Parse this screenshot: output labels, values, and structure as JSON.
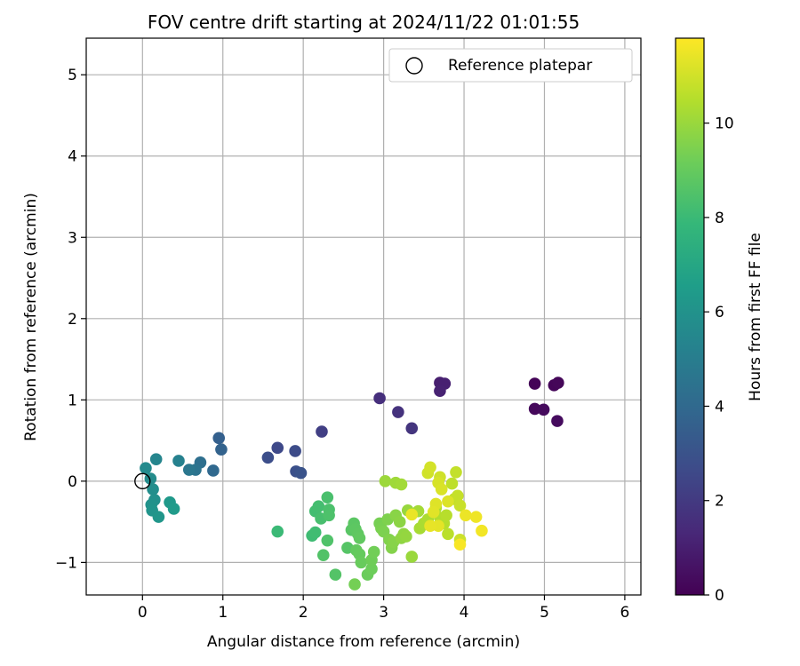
{
  "chart_data": {
    "type": "scatter",
    "title": "FOV centre drift starting at 2024/11/22 01:01:55",
    "xlabel": "Angular distance from reference (arcmin)",
    "ylabel": "Rotation from reference (arcmin)",
    "xlim": [
      -0.7,
      6.2
    ],
    "ylim": [
      -1.4,
      5.45
    ],
    "xticks": [
      0,
      1,
      2,
      3,
      4,
      5,
      6
    ],
    "yticks": [
      -1,
      0,
      1,
      2,
      3,
      4,
      5
    ],
    "xtick_labels": [
      "0",
      "1",
      "2",
      "3",
      "4",
      "5",
      "6"
    ],
    "ytick_labels": [
      "−1",
      "0",
      "1",
      "2",
      "3",
      "4",
      "5"
    ],
    "grid": true,
    "legend": {
      "position": "top-right",
      "label": "Reference platepar",
      "marker": "open-circle"
    },
    "reference_point": {
      "x": 0,
      "y": 0
    },
    "colorbar": {
      "label": "Hours from first FF file",
      "colormap": "viridis",
      "range": [
        0,
        11.8
      ],
      "ticks": [
        0,
        2,
        4,
        6,
        8,
        10
      ],
      "tick_labels": [
        "0",
        "2",
        "4",
        "6",
        "8",
        "10"
      ]
    },
    "series": [
      {
        "points": [
          {
            "x": 4.88,
            "y": 1.2,
            "c": 0.1
          },
          {
            "x": 5.12,
            "y": 1.18,
            "c": 0.15
          },
          {
            "x": 5.17,
            "y": 1.21,
            "c": 0.2
          },
          {
            "x": 4.88,
            "y": 0.89,
            "c": 0.25
          },
          {
            "x": 4.99,
            "y": 0.88,
            "c": 0.3
          },
          {
            "x": 5.16,
            "y": 0.74,
            "c": 0.35
          },
          {
            "x": 3.7,
            "y": 1.21,
            "c": 1.0
          },
          {
            "x": 3.76,
            "y": 1.2,
            "c": 1.05
          },
          {
            "x": 3.7,
            "y": 1.11,
            "c": 1.1
          },
          {
            "x": 2.95,
            "y": 1.02,
            "c": 1.6
          },
          {
            "x": 3.18,
            "y": 0.85,
            "c": 1.7
          },
          {
            "x": 3.35,
            "y": 0.65,
            "c": 1.8
          },
          {
            "x": 2.23,
            "y": 0.61,
            "c": 2.2
          },
          {
            "x": 1.68,
            "y": 0.41,
            "c": 2.6
          },
          {
            "x": 1.9,
            "y": 0.37,
            "c": 2.7
          },
          {
            "x": 1.56,
            "y": 0.29,
            "c": 2.8
          },
          {
            "x": 1.91,
            "y": 0.12,
            "c": 2.9
          },
          {
            "x": 1.97,
            "y": 0.1,
            "c": 3.0
          },
          {
            "x": 0.95,
            "y": 0.53,
            "c": 3.6
          },
          {
            "x": 0.98,
            "y": 0.39,
            "c": 3.7
          },
          {
            "x": 0.88,
            "y": 0.13,
            "c": 4.0
          },
          {
            "x": 0.72,
            "y": 0.23,
            "c": 4.3
          },
          {
            "x": 0.66,
            "y": 0.14,
            "c": 4.5
          },
          {
            "x": 0.58,
            "y": 0.14,
            "c": 4.7
          },
          {
            "x": 0.45,
            "y": 0.25,
            "c": 5.2
          },
          {
            "x": 0.17,
            "y": 0.27,
            "c": 5.4
          },
          {
            "x": 0.04,
            "y": 0.16,
            "c": 5.6
          },
          {
            "x": 0.1,
            "y": 0.03,
            "c": 5.7
          },
          {
            "x": 0.13,
            "y": -0.1,
            "c": 5.8
          },
          {
            "x": 0.15,
            "y": -0.23,
            "c": 5.9
          },
          {
            "x": 0.11,
            "y": -0.29,
            "c": 6.0
          },
          {
            "x": 0.12,
            "y": -0.36,
            "c": 6.1
          },
          {
            "x": 0.2,
            "y": -0.44,
            "c": 6.2
          },
          {
            "x": 0.34,
            "y": -0.26,
            "c": 6.3
          },
          {
            "x": 0.39,
            "y": -0.34,
            "c": 6.4
          },
          {
            "x": 1.68,
            "y": -0.62,
            "c": 8.0
          },
          {
            "x": 2.11,
            "y": -0.67,
            "c": 8.1
          },
          {
            "x": 2.15,
            "y": -0.63,
            "c": 8.15
          },
          {
            "x": 2.15,
            "y": -0.37,
            "c": 8.2
          },
          {
            "x": 2.19,
            "y": -0.31,
            "c": 8.25
          },
          {
            "x": 2.22,
            "y": -0.46,
            "c": 8.3
          },
          {
            "x": 2.3,
            "y": -0.2,
            "c": 8.35
          },
          {
            "x": 2.32,
            "y": -0.35,
            "c": 8.4
          },
          {
            "x": 2.32,
            "y": -0.42,
            "c": 8.45
          },
          {
            "x": 2.3,
            "y": -0.73,
            "c": 8.5
          },
          {
            "x": 2.25,
            "y": -0.91,
            "c": 8.55
          },
          {
            "x": 2.4,
            "y": -1.15,
            "c": 8.6
          },
          {
            "x": 2.55,
            "y": -0.82,
            "c": 8.65
          },
          {
            "x": 2.6,
            "y": -0.6,
            "c": 8.7
          },
          {
            "x": 2.63,
            "y": -0.52,
            "c": 8.75
          },
          {
            "x": 2.65,
            "y": -0.59,
            "c": 8.8
          },
          {
            "x": 2.68,
            "y": -0.65,
            "c": 8.85
          },
          {
            "x": 2.7,
            "y": -0.7,
            "c": 8.9
          },
          {
            "x": 2.66,
            "y": -0.85,
            "c": 8.95
          },
          {
            "x": 2.7,
            "y": -0.9,
            "c": 9.0
          },
          {
            "x": 2.72,
            "y": -1.0,
            "c": 9.05
          },
          {
            "x": 2.8,
            "y": -1.15,
            "c": 9.1
          },
          {
            "x": 2.85,
            "y": -1.08,
            "c": 9.15
          },
          {
            "x": 2.85,
            "y": -0.97,
            "c": 9.2
          },
          {
            "x": 2.88,
            "y": -0.87,
            "c": 9.25
          },
          {
            "x": 2.64,
            "y": -1.27,
            "c": 9.3
          },
          {
            "x": 2.95,
            "y": -0.52,
            "c": 9.35
          },
          {
            "x": 2.97,
            "y": -0.58,
            "c": 9.4
          },
          {
            "x": 3.0,
            "y": -0.62,
            "c": 9.45
          },
          {
            "x": 3.05,
            "y": -0.47,
            "c": 9.5
          },
          {
            "x": 3.07,
            "y": -0.72,
            "c": 9.55
          },
          {
            "x": 3.1,
            "y": -0.82,
            "c": 9.6
          },
          {
            "x": 3.12,
            "y": -0.75,
            "c": 9.65
          },
          {
            "x": 3.15,
            "y": -0.42,
            "c": 9.7
          },
          {
            "x": 3.2,
            "y": -0.5,
            "c": 9.75
          },
          {
            "x": 3.22,
            "y": -0.7,
            "c": 9.8
          },
          {
            "x": 3.25,
            "y": -0.65,
            "c": 9.85
          },
          {
            "x": 3.28,
            "y": -0.68,
            "c": 9.9
          },
          {
            "x": 3.3,
            "y": -0.36,
            "c": 9.95
          },
          {
            "x": 3.35,
            "y": -0.93,
            "c": 10.0
          },
          {
            "x": 3.02,
            "y": 0.0,
            "c": 10.05
          },
          {
            "x": 3.15,
            "y": -0.02,
            "c": 10.1
          },
          {
            "x": 3.22,
            "y": -0.04,
            "c": 10.15
          },
          {
            "x": 3.43,
            "y": -0.37,
            "c": 10.2
          },
          {
            "x": 3.45,
            "y": -0.58,
            "c": 10.25
          },
          {
            "x": 3.5,
            "y": -0.52,
            "c": 10.3
          },
          {
            "x": 3.55,
            "y": -0.47,
            "c": 10.35
          },
          {
            "x": 3.65,
            "y": -0.33,
            "c": 10.4
          },
          {
            "x": 3.7,
            "y": -0.45,
            "c": 10.45
          },
          {
            "x": 3.75,
            "y": -0.52,
            "c": 10.5
          },
          {
            "x": 3.78,
            "y": -0.42,
            "c": 10.55
          },
          {
            "x": 3.8,
            "y": -0.65,
            "c": 10.6
          },
          {
            "x": 3.85,
            "y": -0.03,
            "c": 10.65
          },
          {
            "x": 3.88,
            "y": -0.22,
            "c": 10.7
          },
          {
            "x": 3.9,
            "y": 0.11,
            "c": 10.75
          },
          {
            "x": 3.92,
            "y": -0.18,
            "c": 10.8
          },
          {
            "x": 3.95,
            "y": -0.3,
            "c": 10.85
          },
          {
            "x": 3.95,
            "y": -0.72,
            "c": 10.9
          },
          {
            "x": 3.7,
            "y": 0.05,
            "c": 10.95
          },
          {
            "x": 3.55,
            "y": 0.1,
            "c": 11.0
          },
          {
            "x": 3.58,
            "y": 0.17,
            "c": 11.05
          },
          {
            "x": 3.68,
            "y": -0.02,
            "c": 11.1
          },
          {
            "x": 3.72,
            "y": -0.1,
            "c": 11.15
          },
          {
            "x": 3.8,
            "y": -0.25,
            "c": 11.2
          },
          {
            "x": 3.65,
            "y": -0.28,
            "c": 11.25
          },
          {
            "x": 3.62,
            "y": -0.38,
            "c": 11.3
          },
          {
            "x": 3.68,
            "y": -0.55,
            "c": 11.35
          },
          {
            "x": 3.58,
            "y": -0.55,
            "c": 11.4
          },
          {
            "x": 3.35,
            "y": -0.41,
            "c": 11.45
          },
          {
            "x": 4.02,
            "y": -0.42,
            "c": 11.5
          },
          {
            "x": 4.15,
            "y": -0.44,
            "c": 11.55
          },
          {
            "x": 4.22,
            "y": -0.61,
            "c": 11.6
          },
          {
            "x": 3.95,
            "y": -0.78,
            "c": 11.7
          }
        ]
      }
    ]
  }
}
